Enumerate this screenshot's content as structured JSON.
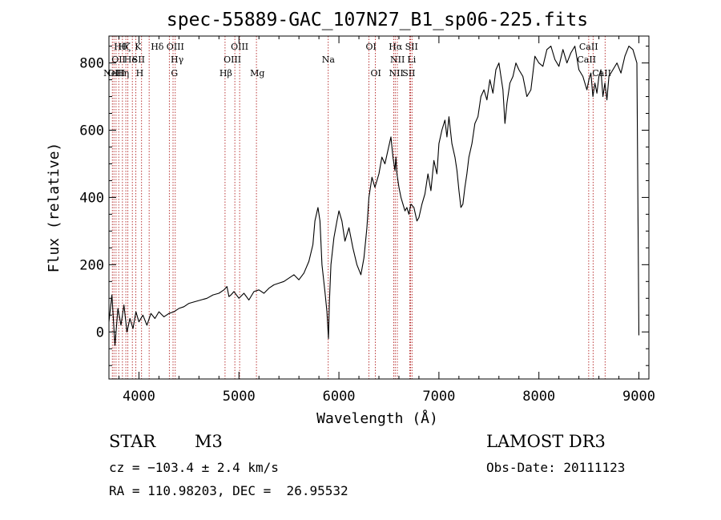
{
  "chart_data": {
    "type": "line",
    "title": "spec-55889-GAC_107N27_B1_sp06-225.fits",
    "xlabel": "Wavelength (Å)",
    "ylabel": "Flux (relative)",
    "xlim": [
      3700,
      9100
    ],
    "ylim": [
      -140,
      880
    ],
    "xticks": [
      4000,
      5000,
      6000,
      7000,
      8000,
      9000
    ],
    "yticks": [
      0,
      200,
      400,
      600,
      800
    ],
    "line_color": "#000000",
    "marker_color": "#b22222",
    "spectrum": {
      "x": [
        3700,
        3730,
        3760,
        3790,
        3820,
        3850,
        3880,
        3910,
        3940,
        3970,
        4000,
        4040,
        4080,
        4120,
        4160,
        4200,
        4250,
        4300,
        4350,
        4400,
        4450,
        4500,
        4560,
        4620,
        4680,
        4740,
        4800,
        4850,
        4880,
        4900,
        4920,
        4950,
        5000,
        5050,
        5100,
        5150,
        5200,
        5250,
        5300,
        5350,
        5400,
        5450,
        5500,
        5550,
        5600,
        5650,
        5700,
        5740,
        5760,
        5790,
        5810,
        5830,
        5860,
        5880,
        5895,
        5905,
        5920,
        5950,
        5980,
        6000,
        6030,
        6060,
        6100,
        6140,
        6180,
        6220,
        6250,
        6280,
        6300,
        6330,
        6360,
        6400,
        6430,
        6460,
        6490,
        6520,
        6540,
        6560,
        6570,
        6580,
        6600,
        6620,
        6640,
        6660,
        6680,
        6700,
        6720,
        6750,
        6780,
        6800,
        6830,
        6860,
        6890,
        6920,
        6950,
        6980,
        7000,
        7030,
        7060,
        7080,
        7100,
        7130,
        7160,
        7180,
        7200,
        7220,
        7240,
        7260,
        7280,
        7300,
        7330,
        7360,
        7390,
        7420,
        7450,
        7480,
        7510,
        7540,
        7570,
        7600,
        7620,
        7640,
        7660,
        7680,
        7710,
        7740,
        7770,
        7800,
        7840,
        7880,
        7920,
        7960,
        8000,
        8040,
        8080,
        8120,
        8160,
        8200,
        8240,
        8280,
        8320,
        8360,
        8400,
        8440,
        8480,
        8500,
        8520,
        8540,
        8560,
        8580,
        8600,
        8620,
        8640,
        8660,
        8680,
        8700,
        8740,
        8780,
        8820,
        8860,
        8900,
        8940,
        8960,
        8980,
        9000
      ],
      "y": [
        30,
        110,
        -40,
        70,
        20,
        80,
        0,
        40,
        10,
        60,
        30,
        50,
        20,
        55,
        40,
        60,
        45,
        55,
        60,
        70,
        75,
        85,
        90,
        95,
        100,
        110,
        115,
        125,
        135,
        105,
        110,
        120,
        100,
        115,
        95,
        120,
        125,
        115,
        130,
        140,
        145,
        150,
        160,
        170,
        155,
        175,
        210,
        260,
        330,
        370,
        330,
        200,
        120,
        60,
        -20,
        90,
        200,
        280,
        330,
        360,
        330,
        270,
        310,
        250,
        200,
        170,
        220,
        310,
        400,
        460,
        430,
        470,
        520,
        500,
        540,
        580,
        520,
        480,
        520,
        470,
        430,
        400,
        380,
        360,
        370,
        350,
        380,
        370,
        330,
        340,
        380,
        410,
        470,
        420,
        510,
        470,
        560,
        600,
        630,
        580,
        640,
        560,
        520,
        480,
        420,
        370,
        380,
        430,
        470,
        520,
        560,
        620,
        640,
        700,
        720,
        690,
        750,
        710,
        780,
        800,
        760,
        720,
        620,
        680,
        740,
        760,
        800,
        780,
        760,
        700,
        720,
        820,
        800,
        790,
        840,
        850,
        810,
        790,
        840,
        800,
        830,
        850,
        780,
        760,
        720,
        750,
        770,
        700,
        740,
        710,
        760,
        780,
        700,
        740,
        690,
        760,
        780,
        800,
        770,
        820,
        850,
        840,
        820,
        800,
        -10
      ]
    },
    "lines": [
      {
        "x": 3734,
        "label": "Hθ",
        "row": 1,
        "dx": 2
      },
      {
        "x": 3750,
        "label": "OII",
        "row": 2,
        "dx": -3
      },
      {
        "x": 3771,
        "label": "Hη",
        "row": 3,
        "dx": 0
      },
      {
        "x": 3798,
        "label": "OIII",
        "row": 3,
        "dx": -14
      },
      {
        "x": 3835,
        "label": "He",
        "row": 2,
        "dx": 2
      },
      {
        "x": 3869,
        "label": "NeI",
        "row": 3,
        "dx": -28
      },
      {
        "x": 3889,
        "label": "Hζ",
        "row": 1,
        "dx": -12
      },
      {
        "x": 3934,
        "label": "K",
        "row": 1,
        "dx": 3
      },
      {
        "x": 3969,
        "label": "H",
        "row": 3,
        "dx": 0
      },
      {
        "x": 4026,
        "label": "SII",
        "row": 2,
        "dx": -12
      },
      {
        "x": 4102,
        "label": "Hδ",
        "row": 1,
        "dx": 2
      },
      {
        "x": 4304,
        "label": "G",
        "row": 3,
        "dx": 2
      },
      {
        "x": 4341,
        "label": "Hγ",
        "row": 2,
        "dx": -3
      },
      {
        "x": 4363,
        "label": "OIII",
        "row": 1,
        "dx": -11
      },
      {
        "x": 4861,
        "label": "Hβ",
        "row": 3,
        "dx": -7
      },
      {
        "x": 4959,
        "label": "OIII",
        "row": 2,
        "dx": -14
      },
      {
        "x": 5007,
        "label": "OIII",
        "row": 1,
        "dx": -11
      },
      {
        "x": 5175,
        "label": "Mg",
        "row": 3,
        "dx": -8
      },
      {
        "x": 5893,
        "label": "Na",
        "row": 2,
        "dx": -8
      },
      {
        "x": 6300,
        "label": "OI",
        "row": 1,
        "dx": -4
      },
      {
        "x": 6364,
        "label": "OI",
        "row": 3,
        "dx": -6
      },
      {
        "x": 6548,
        "label": "NII",
        "row": 3,
        "dx": -6
      },
      {
        "x": 6563,
        "label": "Hα",
        "row": 1,
        "dx": -8
      },
      {
        "x": 6584,
        "label": "NII",
        "row": 2,
        "dx": -9
      },
      {
        "x": 6717,
        "label": "SII",
        "row": 1,
        "dx": -7
      },
      {
        "x": 6731,
        "label": "SII",
        "row": 3,
        "dx": -12
      },
      {
        "x": 6708,
        "label": "Li",
        "row": 2,
        "dx": -3
      },
      {
        "x": 8498,
        "label": "CaII",
        "row": 1,
        "dx": -12
      },
      {
        "x": 8542,
        "label": "CaII",
        "row": 2,
        "dx": -20
      },
      {
        "x": 8662,
        "label": "CaII",
        "row": 3,
        "dx": -16
      }
    ]
  },
  "info": {
    "object_class": "STAR",
    "subclass": "M3",
    "redshift": "cz = −103.4 ± 2.4 km/s",
    "coords": "RA = 110.98203, DEC =  26.95532",
    "survey": "LAMOST DR3",
    "obs_date": "Obs-Date: 20111123"
  }
}
